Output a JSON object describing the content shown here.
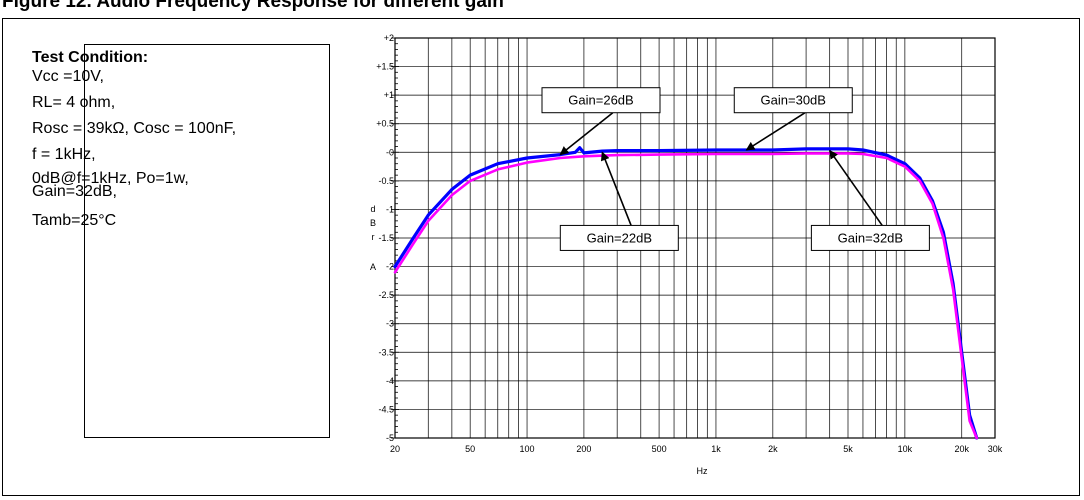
{
  "figure_title": "Figure 12. Audio Frequency Response for different gain",
  "test_condition": {
    "title": "Test Condition:",
    "lines": [
      "Vcc =10V,",
      "RL= 4 ohm,",
      "Rosc = 39kΩ, Cosc = 100nF,",
      "f = 1kHz,",
      "0dB@f=1kHz, Po=1w,\nGain=32dB,",
      "Tamb=25°C"
    ]
  },
  "chart_data": {
    "type": "line",
    "title": "",
    "xlabel": "Hz",
    "ylabel_letters": [
      "d",
      "B",
      "r",
      "",
      "A"
    ],
    "x_scale": "log",
    "xlim": [
      20,
      30000
    ],
    "ylim": [
      -5,
      2
    ],
    "grid": true,
    "x_ticks": [
      {
        "value": 20,
        "label": "20"
      },
      {
        "value": 50,
        "label": "50"
      },
      {
        "value": 100,
        "label": "100"
      },
      {
        "value": 200,
        "label": "200"
      },
      {
        "value": 500,
        "label": "500"
      },
      {
        "value": 1000,
        "label": "1k"
      },
      {
        "value": 2000,
        "label": "2k"
      },
      {
        "value": 5000,
        "label": "5k"
      },
      {
        "value": 10000,
        "label": "10k"
      },
      {
        "value": 20000,
        "label": "20k"
      },
      {
        "value": 30000,
        "label": "30k"
      }
    ],
    "y_ticks": [
      {
        "value": 2,
        "label": "+2"
      },
      {
        "value": 1.5,
        "label": "+1.5"
      },
      {
        "value": 1,
        "label": "+1"
      },
      {
        "value": 0.5,
        "label": "+0.5"
      },
      {
        "value": 0,
        "label": "-0"
      },
      {
        "value": -0.5,
        "label": "-0.5"
      },
      {
        "value": -1,
        "label": "-1"
      },
      {
        "value": -1.5,
        "label": "-1.5"
      },
      {
        "value": -2,
        "label": "-2"
      },
      {
        "value": -2.5,
        "label": "-2.5"
      },
      {
        "value": -3,
        "label": "-3"
      },
      {
        "value": -3.5,
        "label": "-3.5"
      },
      {
        "value": -4,
        "label": "-4"
      },
      {
        "value": -4.5,
        "label": "-4.5"
      },
      {
        "value": -5,
        "label": "-5"
      }
    ],
    "series": [
      {
        "color": "#0000ff",
        "x": [
          20,
          25,
          30,
          40,
          50,
          70,
          100,
          150,
          180,
          190,
          200,
          250,
          300,
          500,
          1000,
          2000,
          3000,
          5000,
          6000,
          8000,
          10000,
          12000,
          14000,
          16000,
          18000,
          20000,
          22000,
          24000
        ],
        "y": [
          -2.0,
          -1.5,
          -1.1,
          -0.65,
          -0.4,
          -0.2,
          -0.1,
          -0.04,
          0.0,
          0.08,
          -0.01,
          0.02,
          0.03,
          0.03,
          0.04,
          0.04,
          0.06,
          0.06,
          0.04,
          -0.05,
          -0.2,
          -0.45,
          -0.85,
          -1.4,
          -2.3,
          -3.5,
          -4.6,
          -5.0
        ]
      },
      {
        "color": "#ff00ff",
        "x": [
          20,
          25,
          30,
          40,
          50,
          70,
          100,
          150,
          200,
          300,
          500,
          1000,
          2000,
          3000,
          5000,
          6000,
          8000,
          10000,
          12000,
          14000,
          16000,
          18000,
          20000,
          22000,
          24000
        ],
        "y": [
          -2.1,
          -1.6,
          -1.2,
          -0.75,
          -0.5,
          -0.3,
          -0.18,
          -0.1,
          -0.07,
          -0.05,
          -0.04,
          -0.03,
          -0.03,
          -0.02,
          -0.02,
          -0.03,
          -0.1,
          -0.25,
          -0.5,
          -0.9,
          -1.5,
          -2.4,
          -3.6,
          -4.7,
          -5.0
        ]
      }
    ],
    "annotations": [
      {
        "label": "Gain=26dB",
        "box_at": [
          120,
          1.13
        ],
        "arrow_to": [
          150,
          -0.04
        ]
      },
      {
        "label": "Gain=30dB",
        "box_at": [
          1250,
          1.13
        ],
        "arrow_to": [
          1450,
          0.04
        ]
      },
      {
        "label": "Gain=22dB",
        "box_at": [
          150,
          -1.28
        ],
        "arrow_to": [
          250,
          0.0
        ]
      },
      {
        "label": "Gain=32dB",
        "box_at": [
          3200,
          -1.28
        ],
        "arrow_to": [
          4000,
          0.03
        ]
      }
    ]
  }
}
